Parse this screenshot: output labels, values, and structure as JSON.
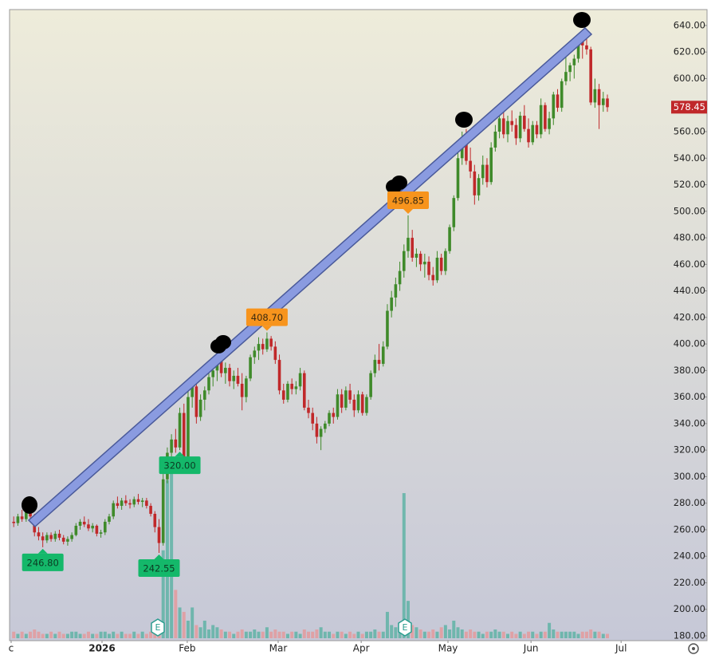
{
  "chart_data": {
    "type": "candlestick",
    "xlim": [
      -1,
      167
    ],
    "xticks": [
      {
        "value": -0.62,
        "label": "c"
      },
      {
        "value": 21.27,
        "label": "2026"
      },
      {
        "value": 41.8,
        "label": "Feb"
      },
      {
        "value": 63.7,
        "label": "Mar"
      },
      {
        "value": 83.7,
        "label": "Apr"
      },
      {
        "value": 104.6,
        "label": "May"
      },
      {
        "value": 124.6,
        "label": "Jun"
      },
      {
        "value": 146.3,
        "label": "Jul"
      }
    ],
    "ylim": [
      176.4,
      652
    ],
    "yticks": [
      {
        "value": 180,
        "label": "180.00"
      },
      {
        "value": 200,
        "label": "200.00"
      },
      {
        "value": 220,
        "label": "220.00"
      },
      {
        "value": 240,
        "label": "240.00"
      },
      {
        "value": 260,
        "label": "260.00"
      },
      {
        "value": 280,
        "label": "280.00"
      },
      {
        "value": 300,
        "label": "300.00"
      },
      {
        "value": 320,
        "label": "320.00"
      },
      {
        "value": 340,
        "label": "340.00"
      },
      {
        "value": 360,
        "label": "360.00"
      },
      {
        "value": 380,
        "label": "380.00"
      },
      {
        "value": 400,
        "label": "400.00"
      },
      {
        "value": 420,
        "label": "420.00"
      },
      {
        "value": 440,
        "label": "440.00"
      },
      {
        "value": 460,
        "label": "460.00"
      },
      {
        "value": 480,
        "label": "480.00"
      },
      {
        "value": 500,
        "label": "500.00"
      },
      {
        "value": 520,
        "label": "520.00"
      },
      {
        "value": 540,
        "label": "540.00"
      },
      {
        "value": 560,
        "label": "560.00"
      },
      {
        "value": 580,
        "label": "580.00"
      },
      {
        "value": 600,
        "label": "600.00"
      },
      {
        "value": 620,
        "label": "620.00"
      },
      {
        "value": 640,
        "label": "640.00"
      }
    ],
    "grid": false,
    "up_color": "#3f8a2a",
    "down_color": "#c0282a",
    "ohlc": [
      [
        266,
        270,
        262,
        265
      ],
      [
        265,
        272,
        263,
        270
      ],
      [
        270,
        275,
        266,
        268
      ],
      [
        268,
        278,
        266,
        275
      ],
      [
        275,
        276,
        268,
        270
      ],
      [
        270,
        272,
        255,
        258
      ],
      [
        258,
        262,
        252,
        255
      ],
      [
        255,
        258,
        246.8,
        252
      ],
      [
        252,
        258,
        250,
        256
      ],
      [
        256,
        258,
        251,
        253
      ],
      [
        253,
        259,
        251,
        257
      ],
      [
        257,
        260,
        252,
        254
      ],
      [
        254,
        256,
        249,
        251
      ],
      [
        251,
        255,
        248,
        253
      ],
      [
        253,
        258,
        251,
        256
      ],
      [
        256,
        265,
        255,
        263
      ],
      [
        263,
        268,
        260,
        266
      ],
      [
        266,
        270,
        262,
        264
      ],
      [
        264,
        268,
        259,
        261
      ],
      [
        261,
        265,
        258,
        263
      ],
      [
        263,
        264,
        255,
        257
      ],
      [
        257,
        260,
        254,
        258
      ],
      [
        258,
        268,
        256,
        266
      ],
      [
        266,
        272,
        264,
        270
      ],
      [
        270,
        282,
        268,
        280
      ],
      [
        280,
        285,
        276,
        278
      ],
      [
        278,
        284,
        275,
        282
      ],
      [
        282,
        286,
        278,
        280
      ],
      [
        280,
        283,
        276,
        279
      ],
      [
        279,
        285,
        277,
        283
      ],
      [
        283,
        287,
        279,
        281
      ],
      [
        281,
        284,
        277,
        282
      ],
      [
        282,
        284,
        276,
        278
      ],
      [
        278,
        280,
        270,
        272
      ],
      [
        272,
        274,
        258,
        262
      ],
      [
        262,
        268,
        242.55,
        250
      ],
      [
        250,
        302,
        248,
        298
      ],
      [
        298,
        322,
        295,
        318
      ],
      [
        318,
        332,
        312,
        328
      ],
      [
        328,
        336,
        318,
        322
      ],
      [
        322,
        352,
        320,
        348
      ],
      [
        348,
        355,
        310,
        315
      ],
      [
        315,
        365,
        312,
        360
      ],
      [
        360,
        372,
        352,
        368
      ],
      [
        368,
        370,
        340,
        345
      ],
      [
        345,
        362,
        342,
        358
      ],
      [
        358,
        368,
        350,
        365
      ],
      [
        365,
        378,
        362,
        375
      ],
      [
        375,
        385,
        368,
        380
      ],
      [
        380,
        392,
        372,
        388
      ],
      [
        388,
        395,
        375,
        378
      ],
      [
        378,
        386,
        370,
        382
      ],
      [
        382,
        385,
        368,
        372
      ],
      [
        372,
        380,
        366,
        376
      ],
      [
        376,
        382,
        368,
        370
      ],
      [
        370,
        378,
        350,
        360
      ],
      [
        360,
        376,
        356,
        374
      ],
      [
        374,
        392,
        372,
        390
      ],
      [
        390,
        398,
        385,
        395
      ],
      [
        395,
        405,
        388,
        400
      ],
      [
        400,
        404,
        392,
        396
      ],
      [
        396,
        408.7,
        394,
        404
      ],
      [
        404,
        406,
        395,
        398
      ],
      [
        398,
        402,
        385,
        388
      ],
      [
        388,
        392,
        362,
        365
      ],
      [
        365,
        370,
        355,
        358
      ],
      [
        358,
        372,
        356,
        370
      ],
      [
        370,
        374,
        362,
        366
      ],
      [
        366,
        372,
        362,
        368
      ],
      [
        368,
        382,
        365,
        378
      ],
      [
        378,
        380,
        350,
        352
      ],
      [
        352,
        358,
        344,
        348
      ],
      [
        348,
        352,
        335,
        340
      ],
      [
        340,
        345,
        325,
        330
      ],
      [
        330,
        338,
        320,
        336
      ],
      [
        336,
        342,
        333,
        340
      ],
      [
        340,
        350,
        338,
        348
      ],
      [
        348,
        352,
        340,
        345
      ],
      [
        345,
        366,
        343,
        362
      ],
      [
        362,
        366,
        348,
        352
      ],
      [
        352,
        368,
        350,
        365
      ],
      [
        365,
        370,
        355,
        358
      ],
      [
        358,
        362,
        345,
        350
      ],
      [
        350,
        365,
        348,
        362
      ],
      [
        362,
        364,
        346,
        348
      ],
      [
        348,
        362,
        346,
        360
      ],
      [
        360,
        380,
        358,
        378
      ],
      [
        378,
        392,
        375,
        388
      ],
      [
        388,
        400,
        380,
        385
      ],
      [
        385,
        402,
        383,
        398
      ],
      [
        398,
        430,
        396,
        425
      ],
      [
        425,
        440,
        420,
        435
      ],
      [
        435,
        450,
        428,
        445
      ],
      [
        445,
        462,
        440,
        455
      ],
      [
        455,
        475,
        450,
        470
      ],
      [
        470,
        496.85,
        465,
        480
      ],
      [
        480,
        486,
        462,
        465
      ],
      [
        465,
        472,
        458,
        468
      ],
      [
        468,
        470,
        455,
        460
      ],
      [
        460,
        468,
        450,
        462
      ],
      [
        462,
        466,
        448,
        452
      ],
      [
        452,
        458,
        444,
        448
      ],
      [
        448,
        470,
        446,
        465
      ],
      [
        465,
        468,
        452,
        455
      ],
      [
        455,
        472,
        452,
        470
      ],
      [
        470,
        490,
        468,
        488
      ],
      [
        488,
        512,
        485,
        510
      ],
      [
        510,
        545,
        508,
        540
      ],
      [
        540,
        560,
        535,
        555
      ],
      [
        555,
        562,
        535,
        538
      ],
      [
        538,
        548,
        525,
        530
      ],
      [
        530,
        535,
        505,
        512
      ],
      [
        512,
        528,
        508,
        525
      ],
      [
        525,
        542,
        520,
        535
      ],
      [
        535,
        540,
        518,
        522
      ],
      [
        522,
        552,
        520,
        548
      ],
      [
        548,
        565,
        545,
        560
      ],
      [
        560,
        575,
        555,
        570
      ],
      [
        570,
        582,
        555,
        558
      ],
      [
        558,
        572,
        552,
        568
      ],
      [
        568,
        576,
        560,
        565
      ],
      [
        565,
        570,
        550,
        555
      ],
      [
        555,
        575,
        552,
        572
      ],
      [
        572,
        580,
        560,
        562
      ],
      [
        562,
        570,
        548,
        552
      ],
      [
        552,
        568,
        550,
        565
      ],
      [
        565,
        568,
        555,
        558
      ],
      [
        558,
        585,
        555,
        580
      ],
      [
        580,
        582,
        560,
        562
      ],
      [
        562,
        575,
        558,
        570
      ],
      [
        570,
        590,
        565,
        588
      ],
      [
        588,
        592,
        575,
        578
      ],
      [
        578,
        600,
        575,
        598
      ],
      [
        598,
        620,
        595,
        605
      ],
      [
        605,
        612,
        598,
        610
      ],
      [
        610,
        618,
        600,
        615
      ],
      [
        615,
        632,
        612,
        628
      ],
      [
        628,
        636,
        615,
        625
      ],
      [
        625,
        630,
        618,
        622
      ],
      [
        622,
        624,
        580,
        582
      ],
      [
        582,
        600,
        578,
        592
      ],
      [
        592,
        596,
        562,
        580
      ],
      [
        580,
        590,
        575,
        585
      ],
      [
        585,
        588,
        575,
        578.45
      ]
    ],
    "volume": [
      3,
      2,
      3,
      2,
      3,
      4,
      3,
      2,
      2,
      3,
      2,
      3,
      2,
      2,
      3,
      3,
      2,
      2,
      3,
      2,
      2,
      3,
      3,
      2,
      3,
      2,
      3,
      2,
      2,
      3,
      2,
      3,
      2,
      3,
      4,
      8,
      40,
      72,
      78,
      22,
      14,
      12,
      8,
      14,
      6,
      5,
      8,
      4,
      6,
      5,
      4,
      3,
      3,
      2,
      3,
      4,
      3,
      3,
      4,
      3,
      3,
      5,
      3,
      4,
      3,
      3,
      2,
      3,
      3,
      2,
      4,
      3,
      3,
      4,
      5,
      3,
      3,
      2,
      3,
      3,
      2,
      3,
      2,
      3,
      2,
      3,
      3,
      4,
      3,
      3,
      12,
      6,
      5,
      4,
      66,
      17,
      6,
      5,
      4,
      3,
      3,
      4,
      3,
      5,
      6,
      4,
      8,
      5,
      4,
      3,
      4,
      3,
      3,
      2,
      3,
      3,
      4,
      3,
      3,
      2,
      3,
      2,
      3,
      2,
      3,
      3,
      2,
      3,
      3,
      7,
      4,
      3,
      3,
      3,
      3,
      3,
      2,
      3,
      3,
      4,
      3,
      3,
      2,
      2
    ],
    "annotations": [
      {
        "value": 246.8,
        "label": "246.80"
      },
      {
        "value": 242.55,
        "label": "242.55"
      },
      {
        "value": 408.7,
        "label": "408.70"
      },
      {
        "value": 320,
        "label": "320.00"
      },
      {
        "value": 496.85,
        "label": "496.85"
      }
    ],
    "earnings_marker": "E"
  }
}
